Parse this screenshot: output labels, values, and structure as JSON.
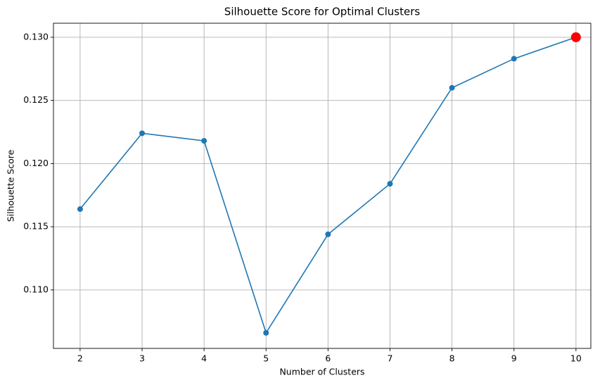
{
  "chart_data": {
    "type": "line",
    "title": "Silhouette Score for Optimal Clusters",
    "x_label": "Number of Clusters",
    "y_label": "Silhouette Score",
    "x": [
      2,
      3,
      4,
      5,
      6,
      7,
      8,
      9,
      10
    ],
    "series": [
      {
        "color": "#1f77b4",
        "values": [
          0.1164,
          0.1224,
          0.1218,
          0.1066,
          0.1144,
          0.1184,
          0.126,
          0.1283,
          0.13
        ]
      }
    ],
    "highlight": {
      "x": 10,
      "y": 0.13,
      "color": "#ff0000"
    },
    "xlim": [
      1.57,
      10.24
    ],
    "ylim": [
      0.10537,
      0.13111
    ],
    "xticks": [
      2,
      3,
      4,
      5,
      6,
      7,
      8,
      9,
      10
    ],
    "yticks": [
      {
        "value": 0.11,
        "label": "0.110"
      },
      0.115,
      {
        "value": 0.12,
        "label": "0.120"
      },
      0.125,
      {
        "value": 0.13,
        "label": "0.130"
      }
    ],
    "grid": true
  }
}
